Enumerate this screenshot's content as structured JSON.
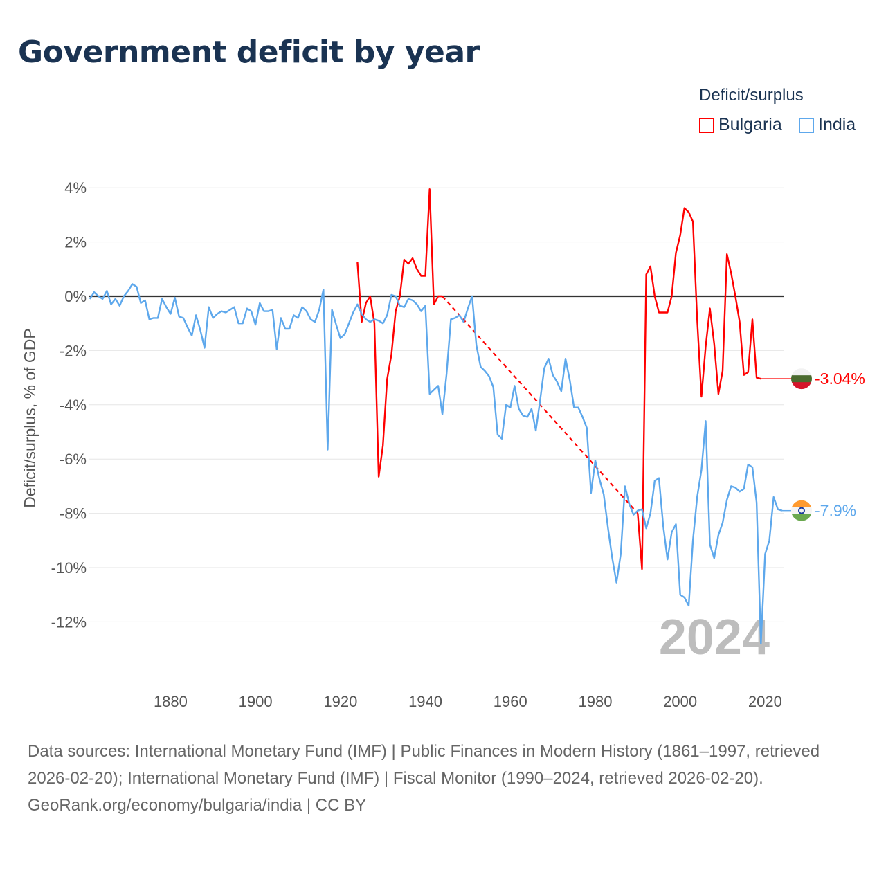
{
  "title": "Government deficit by year",
  "legend": {
    "title": "Deficit/surplus",
    "items": [
      {
        "name": "Bulgaria",
        "color": "#ff0000"
      },
      {
        "name": "India",
        "color": "#5ea8ec"
      }
    ]
  },
  "footer": {
    "sources": "Data sources: International Monetary Fund (IMF) | Public Finances in Modern History (1861–1997, retrieved 2026-02-20); International Monetary Fund (IMF) | Fiscal Monitor (1990–2024, retrieved 2026-02-20).",
    "credit": "GeoRank.org/economy/bulgaria/india | CC BY"
  },
  "chart_data": {
    "type": "line",
    "title": "Government deficit by year",
    "xlabel": "",
    "ylabel": "Deficit/surplus, % of GDP",
    "xlim": [
      1860.7,
      2024.5
    ],
    "ylim": [
      -13.5,
      4.3
    ],
    "yticks": [
      4,
      2,
      0,
      -2,
      -4,
      -6,
      -8,
      -10,
      -12
    ],
    "ytick_labels": [
      "4%",
      "2%",
      "0%",
      "-2%",
      "-4%",
      "-6%",
      "-8%",
      "-10%",
      "-12%"
    ],
    "xticks": [
      1880,
      1900,
      1920,
      1940,
      1960,
      1980,
      2000,
      2020
    ],
    "xtick_labels": [
      "1880",
      "1900",
      "1920",
      "1940",
      "1960",
      "1980",
      "2000",
      "2020"
    ],
    "year_watermark": "2024",
    "grid": true,
    "legend_position": "top-right",
    "series": [
      {
        "name": "Bulgaria",
        "color": "#ff0000",
        "end_label": "-3.04%",
        "x_start": 1924,
        "values": [
          1.25,
          -0.95,
          -0.25,
          0,
          -1.0,
          -6.65,
          -5.5,
          -3.05,
          -2.15,
          -0.55,
          0,
          1.35,
          1.2,
          1.4,
          1.0,
          0.75,
          0.75,
          3.95,
          -0.3,
          0,
          0,
          null,
          null,
          null,
          null,
          null,
          null,
          null,
          null,
          null,
          null,
          null,
          null,
          null,
          null,
          null,
          null,
          null,
          null,
          null,
          null,
          null,
          null,
          null,
          null,
          null,
          null,
          null,
          null,
          null,
          null,
          null,
          null,
          null,
          null,
          null,
          null,
          null,
          null,
          null,
          null,
          null,
          null,
          null,
          null,
          null,
          -8.0,
          -10.05,
          0.8,
          1.1,
          0,
          -0.6,
          -0.6,
          -0.6,
          0,
          1.6,
          2.25,
          3.25,
          3.1,
          2.75,
          -0.85,
          -3.7,
          -1.85,
          -0.45,
          -1.75,
          -3.6,
          -2.75,
          1.55,
          0.85,
          0,
          -0.95,
          -2.9,
          -2.8,
          -0.85,
          -3.0,
          -3.04
        ]
      },
      {
        "name": "India",
        "color": "#5ea8ec",
        "end_label": "-7.9%",
        "x_start": 1861,
        "values": [
          -0.1,
          0.15,
          0,
          -0.1,
          0.2,
          -0.3,
          -0.1,
          -0.35,
          0,
          0.2,
          0.45,
          0.35,
          -0.25,
          -0.15,
          -0.85,
          -0.8,
          -0.8,
          -0.1,
          -0.4,
          -0.65,
          -0.05,
          -0.75,
          -0.8,
          -1.15,
          -1.45,
          -0.7,
          -1.25,
          -1.9,
          -0.4,
          -0.8,
          -0.65,
          -0.55,
          -0.6,
          -0.5,
          -0.4,
          -1.0,
          -1.0,
          -0.45,
          -0.55,
          -1.05,
          -0.25,
          -0.55,
          -0.55,
          -0.5,
          -1.95,
          -0.8,
          -1.2,
          -1.2,
          -0.7,
          -0.8,
          -0.4,
          -0.55,
          -0.85,
          -0.95,
          -0.5,
          0.25,
          -5.65,
          -0.5,
          -1.05,
          -1.55,
          -1.4,
          -1.0,
          -0.6,
          -0.3,
          -0.65,
          -0.85,
          -0.95,
          -0.85,
          -0.9,
          -1.0,
          -0.7,
          0.05,
          0,
          -0.35,
          -0.4,
          -0.1,
          -0.15,
          -0.3,
          -0.55,
          -0.35,
          -3.6,
          -3.45,
          -3.3,
          -4.35,
          -2.85,
          -0.85,
          -0.8,
          -0.7,
          -0.95,
          -0.45,
          0,
          -1.8,
          -2.6,
          -2.75,
          -2.95,
          -3.35,
          -5.1,
          -5.25,
          -4.0,
          -4.1,
          -3.3,
          -4.15,
          -4.4,
          -4.45,
          -4.15,
          -4.95,
          -3.85,
          -2.65,
          -2.3,
          -2.9,
          -3.15,
          -3.5,
          -2.3,
          -3.1,
          -4.1,
          -4.1,
          -4.45,
          -4.85,
          -7.25,
          -6.05,
          -6.75,
          -7.3,
          -8.55,
          -9.65,
          -10.55,
          -9.5,
          -7.0,
          -7.65,
          -8.05,
          -7.9,
          -7.85,
          -8.55,
          -8.0,
          -6.8,
          -6.7,
          -8.45,
          -9.7,
          -8.7,
          -8.4,
          -11.0,
          -11.1,
          -11.4,
          -9.0,
          -7.4,
          -6.4,
          -4.6,
          -9.15,
          -9.65,
          -8.8,
          -8.35,
          -7.5,
          -7.0,
          -7.05,
          -7.2,
          -7.1,
          -6.2,
          -6.3,
          -7.6,
          -12.8,
          -9.5,
          -9.0,
          -7.4,
          -7.85,
          -7.9
        ]
      }
    ]
  }
}
